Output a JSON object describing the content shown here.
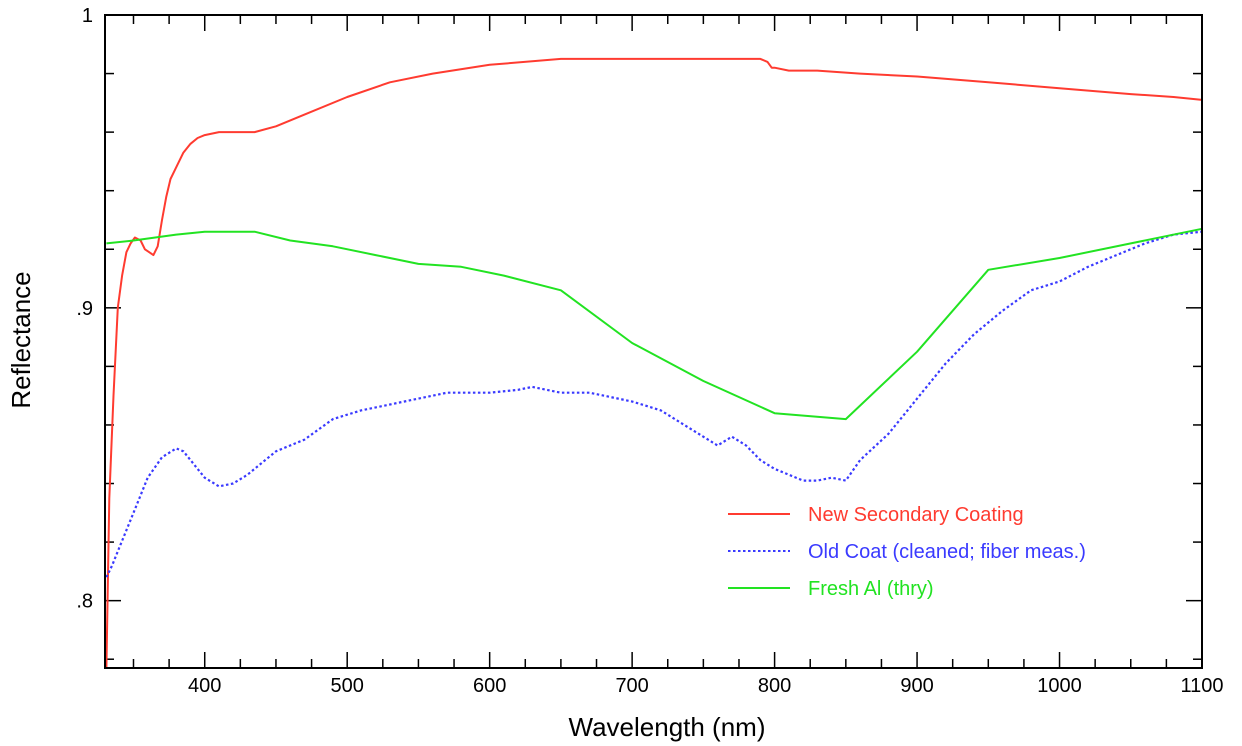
{
  "chart_data": {
    "type": "line",
    "title": "",
    "xlabel": "Wavelength (nm)",
    "ylabel": "Reflectance",
    "xlim": [
      330,
      1100
    ],
    "ylim": [
      0.777,
      1.0
    ],
    "x_ticks": [
      400,
      500,
      600,
      700,
      800,
      900,
      1000,
      1100
    ],
    "x_tick_labels": [
      "400",
      "500",
      "600",
      "700",
      "800",
      "900",
      "1000",
      "1100"
    ],
    "y_ticks": [
      0.8,
      0.9,
      1.0
    ],
    "y_tick_labels": [
      ".8",
      ".9",
      "1"
    ],
    "x_minor_step": 25,
    "y_minor_step": 0.02,
    "grid": false,
    "legend_position": "lower-right",
    "series": [
      {
        "name": "New Secondary Coating",
        "color": "#ff3b30",
        "style": "solid",
        "x": [
          331,
          333,
          336,
          339,
          342,
          345,
          348,
          351,
          355,
          358,
          361,
          364,
          367,
          370,
          373,
          376,
          380,
          385,
          390,
          395,
          400,
          410,
          420,
          435,
          450,
          470,
          500,
          530,
          560,
          600,
          650,
          700,
          750,
          790,
          795,
          798,
          800,
          810,
          830,
          860,
          900,
          950,
          1000,
          1050,
          1080,
          1100
        ],
        "y": [
          0.777,
          0.835,
          0.87,
          0.9,
          0.911,
          0.919,
          0.922,
          0.924,
          0.923,
          0.92,
          0.919,
          0.918,
          0.921,
          0.93,
          0.938,
          0.944,
          0.948,
          0.953,
          0.956,
          0.958,
          0.959,
          0.96,
          0.96,
          0.96,
          0.962,
          0.966,
          0.972,
          0.977,
          0.98,
          0.983,
          0.985,
          0.985,
          0.985,
          0.985,
          0.984,
          0.982,
          0.982,
          0.981,
          0.981,
          0.98,
          0.979,
          0.977,
          0.975,
          0.973,
          0.972,
          0.971
        ]
      },
      {
        "name": "Old Coat (cleaned; fiber meas.)",
        "color": "#3a3aff",
        "style": "dotted",
        "x": [
          331,
          335,
          340,
          350,
          360,
          370,
          380,
          385,
          390,
          400,
          410,
          420,
          430,
          440,
          450,
          470,
          490,
          510,
          530,
          550,
          570,
          600,
          620,
          630,
          650,
          670,
          700,
          720,
          740,
          760,
          770,
          780,
          790,
          800,
          810,
          820,
          830,
          840,
          850,
          860,
          880,
          900,
          920,
          940,
          960,
          980,
          1000,
          1020,
          1040,
          1060,
          1080,
          1100
        ],
        "y": [
          0.808,
          0.812,
          0.818,
          0.83,
          0.842,
          0.849,
          0.852,
          0.851,
          0.848,
          0.842,
          0.839,
          0.84,
          0.843,
          0.847,
          0.851,
          0.855,
          0.862,
          0.865,
          0.867,
          0.869,
          0.871,
          0.871,
          0.872,
          0.873,
          0.871,
          0.871,
          0.868,
          0.865,
          0.859,
          0.853,
          0.856,
          0.853,
          0.848,
          0.845,
          0.843,
          0.841,
          0.841,
          0.842,
          0.841,
          0.848,
          0.857,
          0.869,
          0.881,
          0.891,
          0.899,
          0.906,
          0.909,
          0.914,
          0.918,
          0.922,
          0.925,
          0.926
        ]
      },
      {
        "name": "Fresh Al (thry)",
        "color": "#22e322",
        "style": "solid",
        "x": [
          331,
          350,
          380,
          400,
          435,
          460,
          490,
          520,
          550,
          580,
          610,
          650,
          700,
          750,
          800,
          850,
          900,
          950,
          1000,
          1050,
          1100
        ],
        "y": [
          0.922,
          0.923,
          0.925,
          0.926,
          0.926,
          0.923,
          0.921,
          0.918,
          0.915,
          0.914,
          0.911,
          0.906,
          0.888,
          0.875,
          0.864,
          0.862,
          0.885,
          0.913,
          0.917,
          0.922,
          0.927
        ]
      }
    ]
  }
}
